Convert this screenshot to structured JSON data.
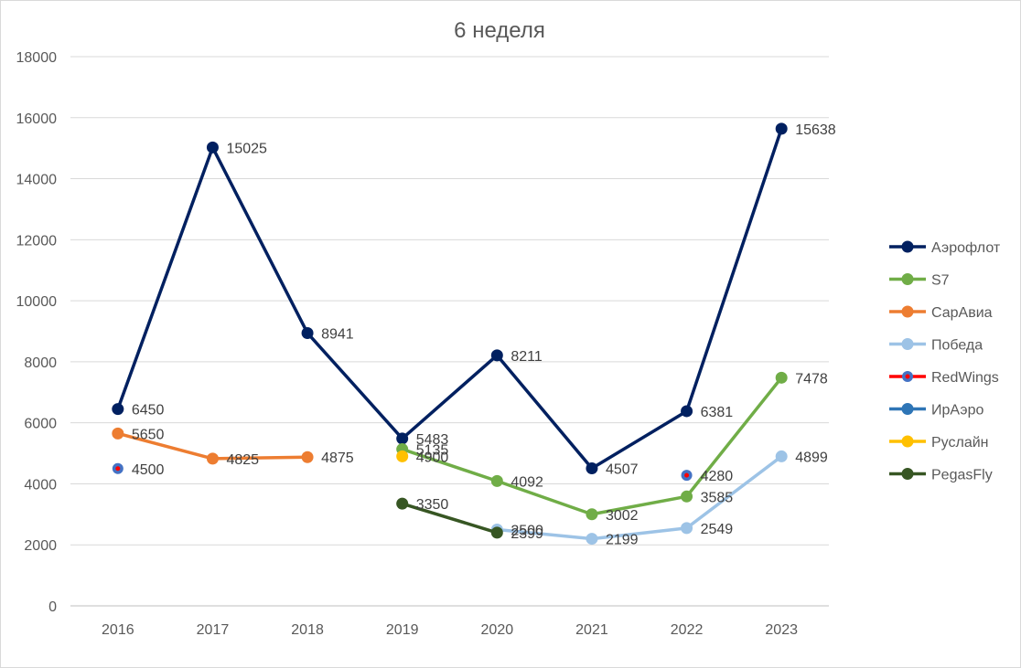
{
  "chart_data": {
    "type": "line",
    "title": "6 неделя",
    "categories": [
      "2016",
      "2017",
      "2018",
      "2019",
      "2020",
      "2021",
      "2022",
      "2023"
    ],
    "ylim": [
      0,
      18000
    ],
    "yticks": [
      "0",
      "2000",
      "4000",
      "6000",
      "8000",
      "10000",
      "12000",
      "14000",
      "16000",
      "18000"
    ],
    "grid": "horizontal",
    "legend_position": "right",
    "series": [
      {
        "name": "Аэрофлот",
        "color": "#002060",
        "values": [
          6450,
          15025,
          8941,
          5483,
          8211,
          4507,
          6381,
          15638
        ]
      },
      {
        "name": "S7",
        "color": "#70ad47",
        "values": [
          null,
          null,
          null,
          5135,
          4092,
          3002,
          3585,
          7478
        ]
      },
      {
        "name": "СарАвиа",
        "color": "#ed7d31",
        "values": [
          5650,
          4825,
          4875,
          null,
          null,
          null,
          null,
          null
        ]
      },
      {
        "name": "Победа",
        "color": "#9dc3e6",
        "values": [
          null,
          null,
          null,
          null,
          2500,
          2199,
          2549,
          4899
        ]
      },
      {
        "name": "RedWings",
        "color": "#ff0000",
        "marker_color": "#4472c4",
        "values": [
          4500,
          null,
          null,
          null,
          null,
          null,
          4280,
          null
        ]
      },
      {
        "name": "ИрАэро",
        "color": "#2e75b6",
        "values": [
          null,
          null,
          null,
          null,
          null,
          null,
          null,
          null
        ]
      },
      {
        "name": "Руслайн",
        "color": "#ffc000",
        "values": [
          null,
          null,
          null,
          4900,
          null,
          null,
          null,
          null
        ]
      },
      {
        "name": "PegasFly",
        "color": "#375623",
        "values": [
          null,
          null,
          null,
          3350,
          2399,
          null,
          null,
          null
        ]
      }
    ]
  }
}
